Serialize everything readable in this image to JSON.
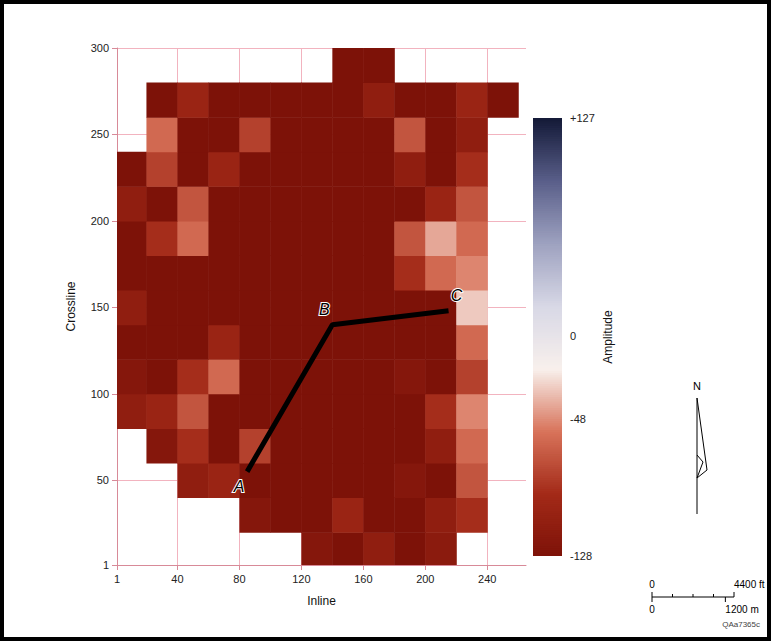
{
  "chart_data": {
    "type": "heatmap",
    "xlabel": "Inline",
    "ylabel": "Crossline",
    "xlim": [
      1,
      265
    ],
    "ylim": [
      1,
      300
    ],
    "xticks": [
      1,
      40,
      80,
      120,
      160,
      200,
      240
    ],
    "yticks": [
      1,
      50,
      100,
      150,
      200,
      250,
      300
    ],
    "grid": true,
    "heatmap": {
      "x": [
        10,
        30,
        50,
        70,
        90,
        110,
        130,
        150,
        170,
        190,
        210,
        230,
        250,
        270
      ],
      "y": [
        10,
        30,
        50,
        70,
        90,
        110,
        130,
        150,
        170,
        190,
        210,
        230,
        250,
        270,
        290
      ],
      "values": [
        [
          null,
          null,
          null,
          null,
          null,
          null,
          -120,
          -128,
          -110,
          -128,
          -115,
          null,
          null,
          null
        ],
        [
          null,
          null,
          null,
          null,
          -120,
          -128,
          -128,
          -100,
          -128,
          -128,
          -110,
          -90,
          null,
          null
        ],
        [
          null,
          null,
          -110,
          -100,
          -128,
          -128,
          -128,
          -128,
          -128,
          -120,
          -128,
          -70,
          null,
          null
        ],
        [
          null,
          -120,
          -90,
          -128,
          -80,
          -128,
          -128,
          -128,
          -128,
          -128,
          -110,
          -60,
          null,
          null
        ],
        [
          -110,
          -100,
          -70,
          -128,
          -128,
          -128,
          -128,
          -128,
          -128,
          -128,
          -90,
          -50,
          null,
          null
        ],
        [
          -120,
          -128,
          -90,
          -60,
          -128,
          -128,
          -128,
          -128,
          -128,
          -120,
          -128,
          -80,
          null,
          null
        ],
        [
          -128,
          -128,
          -128,
          -100,
          -128,
          -128,
          -128,
          -128,
          -128,
          -128,
          -128,
          -60,
          null,
          null
        ],
        [
          -110,
          -128,
          -128,
          -128,
          -128,
          -128,
          -128,
          -128,
          -128,
          -128,
          -128,
          -30,
          null,
          null
        ],
        [
          -128,
          -128,
          -128,
          -128,
          -128,
          -128,
          -128,
          -128,
          -128,
          -90,
          -60,
          -50,
          null,
          null
        ],
        [
          -128,
          -90,
          -60,
          -128,
          -128,
          -128,
          -128,
          -128,
          -128,
          -70,
          -40,
          -60,
          null,
          null
        ],
        [
          -110,
          -128,
          -70,
          -128,
          -128,
          -128,
          -128,
          -128,
          -128,
          -128,
          -100,
          -70,
          null,
          null
        ],
        [
          -128,
          -80,
          -128,
          -100,
          -128,
          -128,
          -128,
          -128,
          -128,
          -110,
          -128,
          -90,
          null,
          null
        ],
        [
          null,
          -60,
          -128,
          -128,
          -80,
          -128,
          -128,
          -128,
          -128,
          -70,
          -128,
          -110,
          null,
          null
        ],
        [
          null,
          -128,
          -100,
          -128,
          -128,
          -128,
          -128,
          -128,
          -110,
          -128,
          -128,
          -100,
          -128,
          null
        ],
        [
          null,
          null,
          null,
          null,
          null,
          null,
          null,
          -128,
          -128,
          null,
          null,
          null,
          null,
          null
        ]
      ]
    },
    "colorbar": {
      "range": [
        -128,
        127
      ],
      "ticks": [
        {
          "value": 127,
          "label": "+127"
        },
        0,
        -48,
        -128
      ],
      "label": "Amplitude",
      "colors": [
        "#7d1208",
        "#a32a18",
        "#d8735a",
        "#f8f0ec",
        "#d8d8e6",
        "#9ea2c0",
        "#5a5f8a",
        "#141a38"
      ]
    },
    "line": {
      "x": [
        85,
        140,
        215
      ],
      "y": [
        55,
        140,
        148
      ],
      "labels": [
        "A",
        "B",
        "C"
      ],
      "color": "#000000"
    },
    "annotations": {
      "north": "N",
      "scale_bar_ft": [
        {
          "value": 0,
          "label": "0"
        },
        {
          "value": 4400,
          "label": "4400 ft"
        }
      ],
      "scale_bar_m": [
        {
          "value": 0,
          "label": "0"
        },
        {
          "value": 1200,
          "label": "1200 m"
        }
      ],
      "figure_id": "QAa7365c"
    }
  }
}
